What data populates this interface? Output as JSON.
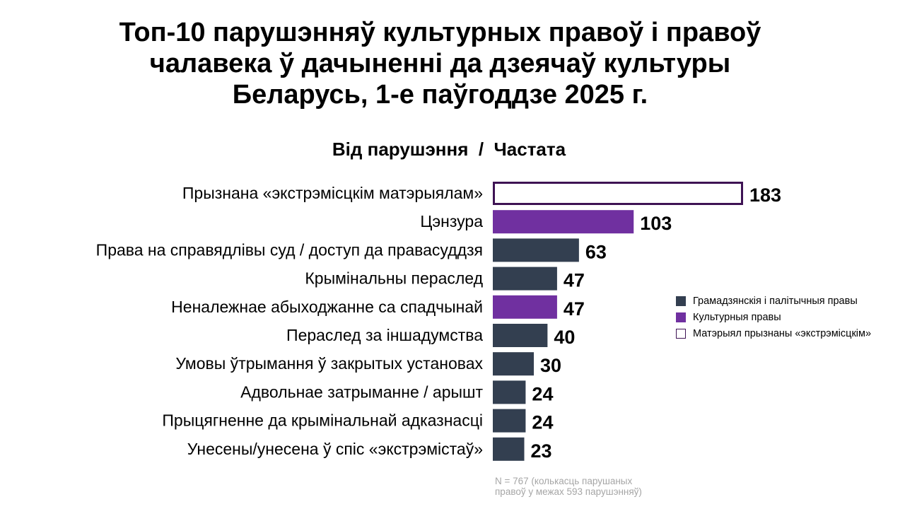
{
  "chart_data": {
    "type": "bar",
    "orientation": "horizontal",
    "title": [
      "Топ-10 парушэнняў культурных правоў і правоў",
      "чалавека ў дачыненні да дзеячаў культуры",
      "Беларусь, 1-е паўгоддзе 2025 г."
    ],
    "subtitle": "Від парушэння  /  Частата",
    "categories": [
      "Прызнана «экстрэмісцкім матэрыялам»",
      "Цэнзура",
      "Права на справядлівы суд / доступ да правасуддзя",
      "Крымінальны пераслед",
      "Неналежнае абыходжанне са спадчынай",
      "Пераслед за іншадумства",
      "Умовы ўтрымання ў закрытых установах",
      "Адвольнае затрыманне / арышт",
      "Прыцягненне да крымінальнай адказнасці",
      "Унесены/унесена ў спіс «экстрэмістаў»"
    ],
    "values": [
      183,
      103,
      63,
      47,
      47,
      40,
      30,
      24,
      24,
      23
    ],
    "groups": [
      "extremist",
      "cultural",
      "civil",
      "civil",
      "cultural",
      "civil",
      "civil",
      "civil",
      "civil",
      "civil"
    ],
    "xlim": [
      0,
      183
    ],
    "grid": false,
    "legend_position": "right",
    "legend": [
      {
        "key": "civil",
        "label": "Грамадзянскія і палітычныя правы",
        "color": "#333f50"
      },
      {
        "key": "cultural",
        "label": "Культурныя правы",
        "color": "#7030a0"
      },
      {
        "key": "extremist",
        "label": "Матэрыял прызнаны «экстрэмісцкім»",
        "color": "#ffffff",
        "border": "#3e1354"
      }
    ]
  },
  "footnote": [
    "N = 767 (колькасць парушаных",
    "правоў у межах 593 парушэнняў)"
  ]
}
